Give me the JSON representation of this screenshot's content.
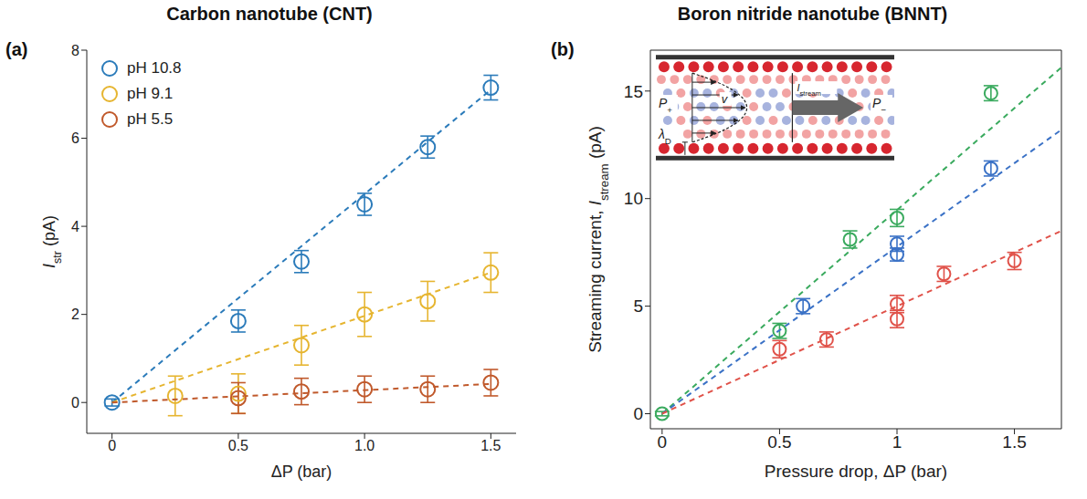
{
  "chart_data": [
    {
      "panel": "(a)",
      "title": "Carbon nanotube (CNT)",
      "type": "scatter",
      "marker": "open circle",
      "line_style": "dashed",
      "grid": false,
      "legend": "upper left",
      "x_label": "ΔP (bar)",
      "y_label": {
        "main": "I",
        "sub": "str",
        "after": " (pA)"
      },
      "xlim": [
        -0.1,
        1.6
      ],
      "xticks": [
        0,
        0.5,
        {
          "value": 1,
          "label": "1.0"
        },
        1.5
      ],
      "ylim": [
        -0.7,
        8
      ],
      "yticks": [
        0,
        2,
        4,
        6,
        8
      ],
      "series": [
        {
          "name": "pH 10.8",
          "color": "#2b7bba",
          "x": [
            0,
            0.5,
            0.75,
            1,
            1.25,
            1.5
          ],
          "values": [
            0,
            1.85,
            3.2,
            4.5,
            5.8,
            7.15
          ],
          "errors": [
            0.08,
            0.25,
            0.25,
            0.25,
            0.25,
            0.28
          ],
          "fit": {
            "x": [
              0,
              1.5
            ],
            "y": [
              0,
              7.1
            ]
          }
        },
        {
          "name": "pH 9.1",
          "color": "#e6b530",
          "x": [
            0.25,
            0.5,
            0.75,
            1,
            1.25,
            1.5
          ],
          "values": [
            0.15,
            0.2,
            1.3,
            2.0,
            2.3,
            2.95
          ],
          "errors": [
            0.45,
            0.45,
            0.45,
            0.5,
            0.45,
            0.45
          ],
          "fit": {
            "x": [
              0,
              1.5
            ],
            "y": [
              0,
              2.95
            ]
          }
        },
        {
          "name": "pH 5.5",
          "color": "#c0592b",
          "x": [
            0.5,
            0.75,
            1,
            1.25,
            1.5
          ],
          "values": [
            0.1,
            0.25,
            0.3,
            0.3,
            0.45
          ],
          "errors": [
            0.35,
            0.3,
            0.3,
            0.3,
            0.3
          ],
          "fit": {
            "x": [
              0,
              1.5
            ],
            "y": [
              0,
              0.42
            ]
          }
        }
      ]
    },
    {
      "panel": "(b)",
      "title": "Boron nitride nanotube (BNNT)",
      "type": "scatter",
      "marker": "open circle",
      "line_style": "dashed",
      "grid": false,
      "x_label": "Pressure drop, ΔP (bar)",
      "y_label": {
        "before": "Streaming current, ",
        "main": "I",
        "sub": "stream",
        "after": " (pA)"
      },
      "xlim": [
        -0.05,
        1.7
      ],
      "xticks": [
        0,
        0.5,
        1,
        1.5
      ],
      "ylim": [
        -0.7,
        16.9
      ],
      "yticks": [
        0,
        5,
        10,
        15
      ],
      "series": [
        {
          "color": "#3aaa5e",
          "x": [
            0,
            0.5,
            0.8,
            1,
            1.4
          ],
          "values": [
            0,
            3.85,
            8.1,
            9.1,
            14.9
          ],
          "errors": [
            0.1,
            0.35,
            0.4,
            0.4,
            0.35
          ],
          "fit": {
            "x": [
              0,
              1.7
            ],
            "y": [
              0,
              16.1
            ]
          }
        },
        {
          "color": "#3b72c6",
          "x": [
            0.6,
            1,
            1,
            1.4
          ],
          "values": [
            5.0,
            7.9,
            7.4,
            11.4
          ],
          "errors": [
            0.35,
            0.35,
            0.3,
            0.35
          ],
          "fit": {
            "x": [
              0,
              1.7
            ],
            "y": [
              0,
              13.2
            ]
          }
        },
        {
          "color": "#e0524a",
          "x": [
            0.5,
            0.7,
            1,
            1,
            1.2,
            1.5
          ],
          "values": [
            3.0,
            3.45,
            5.1,
            4.4,
            6.5,
            7.1
          ],
          "errors": [
            0.4,
            0.35,
            0.4,
            0.4,
            0.35,
            0.4
          ],
          "fit": {
            "x": [
              0,
              1.7
            ],
            "y": [
              0,
              8.5
            ]
          }
        }
      ],
      "inset": {
        "left_pressure": {
          "main": "P",
          "sub": "+"
        },
        "right_pressure": {
          "main": "P",
          "sub": "−"
        },
        "debye_length": {
          "main": "λ",
          "sub": "D"
        },
        "velocity": "v",
        "current": {
          "main": "I",
          "sub": "stream"
        }
      }
    }
  ]
}
